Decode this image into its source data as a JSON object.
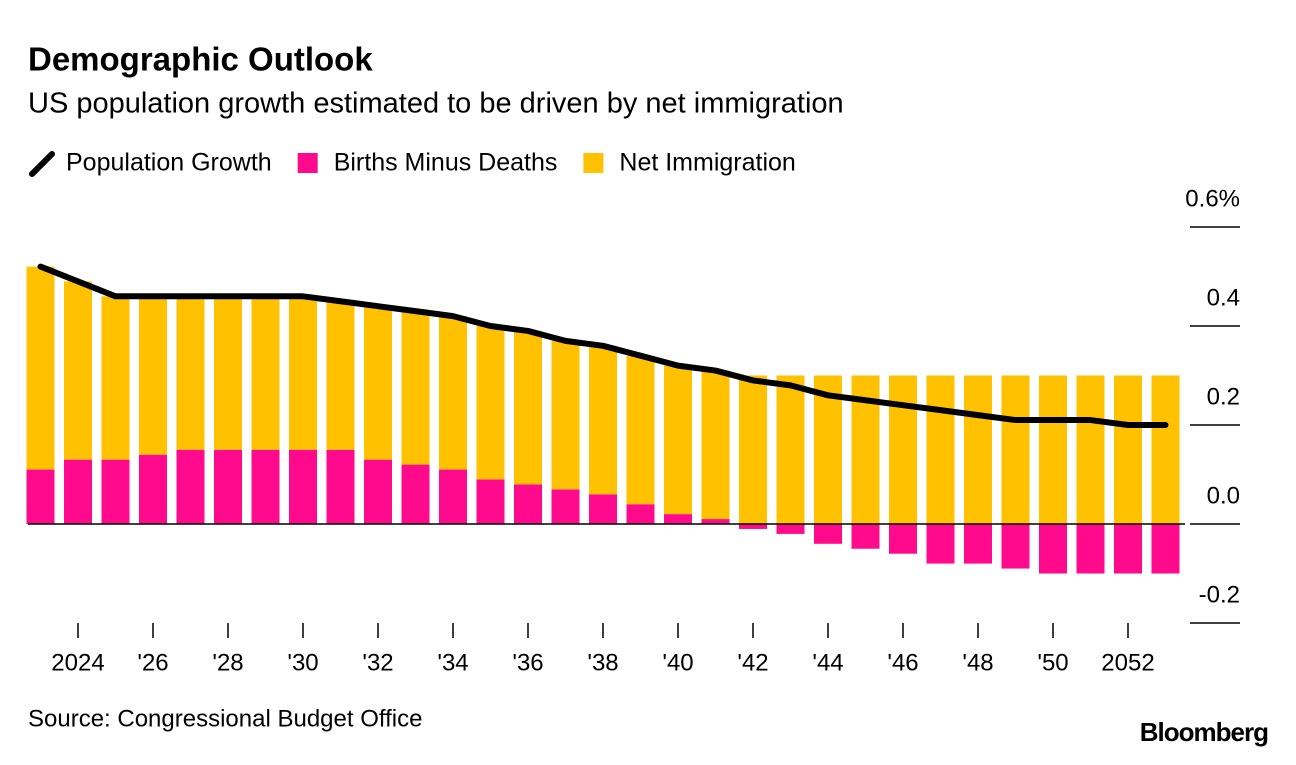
{
  "chart_data": {
    "type": "bar-line",
    "title": "Demographic Outlook",
    "subtitle": "US population growth estimated to be driven by net immigration",
    "source": "Source: Congressional Budget Office",
    "brand": "Bloomberg",
    "categories": [
      null,
      "2024",
      null,
      "'26",
      null,
      "'28",
      null,
      "'30",
      null,
      "'32",
      null,
      "'34",
      null,
      "'36",
      null,
      "'38",
      null,
      "'40",
      null,
      "'42",
      null,
      "'44",
      null,
      "'46",
      null,
      "'48",
      null,
      "'50",
      null,
      "2052",
      null
    ],
    "series": [
      {
        "name": "Population Growth",
        "type": "line",
        "color": "#000000",
        "values": [
          0.52,
          0.49,
          0.46,
          0.46,
          0.46,
          0.46,
          0.46,
          0.46,
          0.45,
          0.44,
          0.43,
          0.42,
          0.4,
          0.39,
          0.37,
          0.36,
          0.34,
          0.32,
          0.31,
          0.29,
          0.28,
          0.26,
          0.25,
          0.24,
          0.23,
          0.22,
          0.21,
          0.21,
          0.21,
          0.2,
          0.2
        ]
      },
      {
        "name": "Births Minus Deaths",
        "type": "bar",
        "color": "#ff0a8c",
        "values": [
          0.11,
          0.13,
          0.13,
          0.14,
          0.15,
          0.15,
          0.15,
          0.15,
          0.15,
          0.13,
          0.12,
          0.11,
          0.09,
          0.08,
          0.07,
          0.06,
          0.04,
          0.02,
          0.01,
          -0.01,
          -0.02,
          -0.04,
          -0.05,
          -0.06,
          -0.08,
          -0.08,
          -0.09,
          -0.1,
          -0.1,
          -0.1,
          -0.1
        ]
      },
      {
        "name": "Net Immigration",
        "type": "bar",
        "color": "#ffc100",
        "values": [
          0.41,
          0.36,
          0.33,
          0.32,
          0.31,
          0.31,
          0.31,
          0.31,
          0.3,
          0.31,
          0.31,
          0.31,
          0.31,
          0.31,
          0.3,
          0.3,
          0.3,
          0.3,
          0.3,
          0.3,
          0.3,
          0.3,
          0.3,
          0.3,
          0.3,
          0.3,
          0.3,
          0.3,
          0.3,
          0.3,
          0.3
        ]
      }
    ],
    "ylim": [
      -0.2,
      0.6
    ],
    "yticks": [
      {
        "value": -0.2,
        "label": "-0.2"
      },
      {
        "value": 0,
        "label": "0.0"
      },
      0.2,
      0.4,
      {
        "value": 0.6,
        "label": "0.6%"
      }
    ]
  }
}
